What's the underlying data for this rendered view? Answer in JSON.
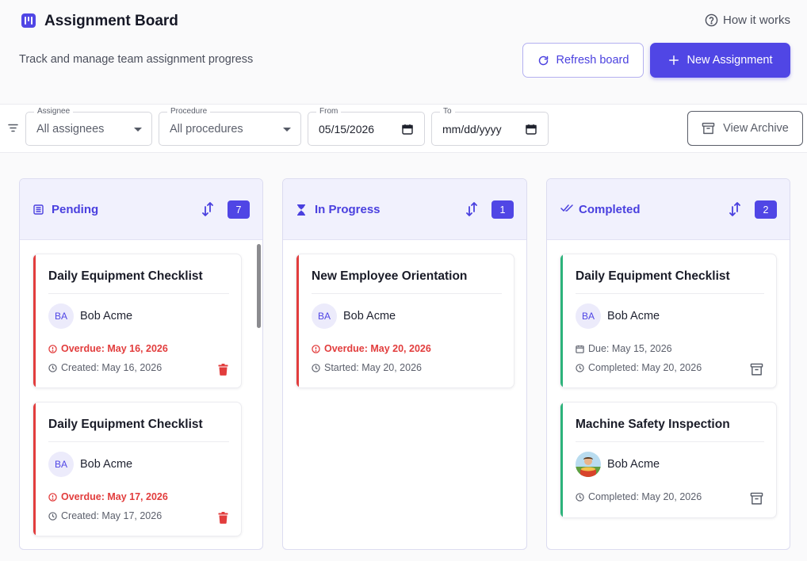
{
  "header": {
    "title": "Assignment Board",
    "subtitle": "Track and manage team assignment progress",
    "help_label": "How it works",
    "refresh_label": "Refresh board",
    "new_label": "New Assignment",
    "accent": "#5046e5"
  },
  "filters": {
    "assignee": {
      "label": "Assignee",
      "value": "All assignees"
    },
    "procedure": {
      "label": "Procedure",
      "value": "All procedures"
    },
    "from": {
      "label": "From",
      "value": "05/15/2026"
    },
    "to": {
      "label": "To",
      "value": "mm/dd/yyyy"
    },
    "archive_label": "View Archive"
  },
  "columns": [
    {
      "title": "Pending",
      "count": "7",
      "cards": [
        {
          "title": "Daily Equipment Checklist",
          "initials": "BA",
          "name": "Bob Acme",
          "line1": "Overdue: May 16, 2026",
          "line2": "Created: May 16, 2026"
        },
        {
          "title": "Daily Equipment Checklist",
          "initials": "BA",
          "name": "Bob Acme",
          "line1": "Overdue: May 17, 2026",
          "line2": "Created: May 17, 2026"
        }
      ]
    },
    {
      "title": "In Progress",
      "count": "1",
      "cards": [
        {
          "title": "New Employee Orientation",
          "initials": "BA",
          "name": "Bob Acme",
          "line1": "Overdue: May 20, 2026",
          "line2": "Started: May 20, 2026"
        }
      ]
    },
    {
      "title": "Completed",
      "count": "2",
      "cards": [
        {
          "title": "Daily Equipment Checklist",
          "initials": "BA",
          "name": "Bob Acme",
          "line1": "Due: May 15, 2026",
          "line2": "Completed: May 20, 2026"
        },
        {
          "title": "Machine Safety Inspection",
          "name": "Bob Acme",
          "line1": "Completed: May 20, 2026"
        }
      ]
    }
  ],
  "colors": {
    "overdue": "#e23d3d",
    "completed": "#2cb37a"
  }
}
